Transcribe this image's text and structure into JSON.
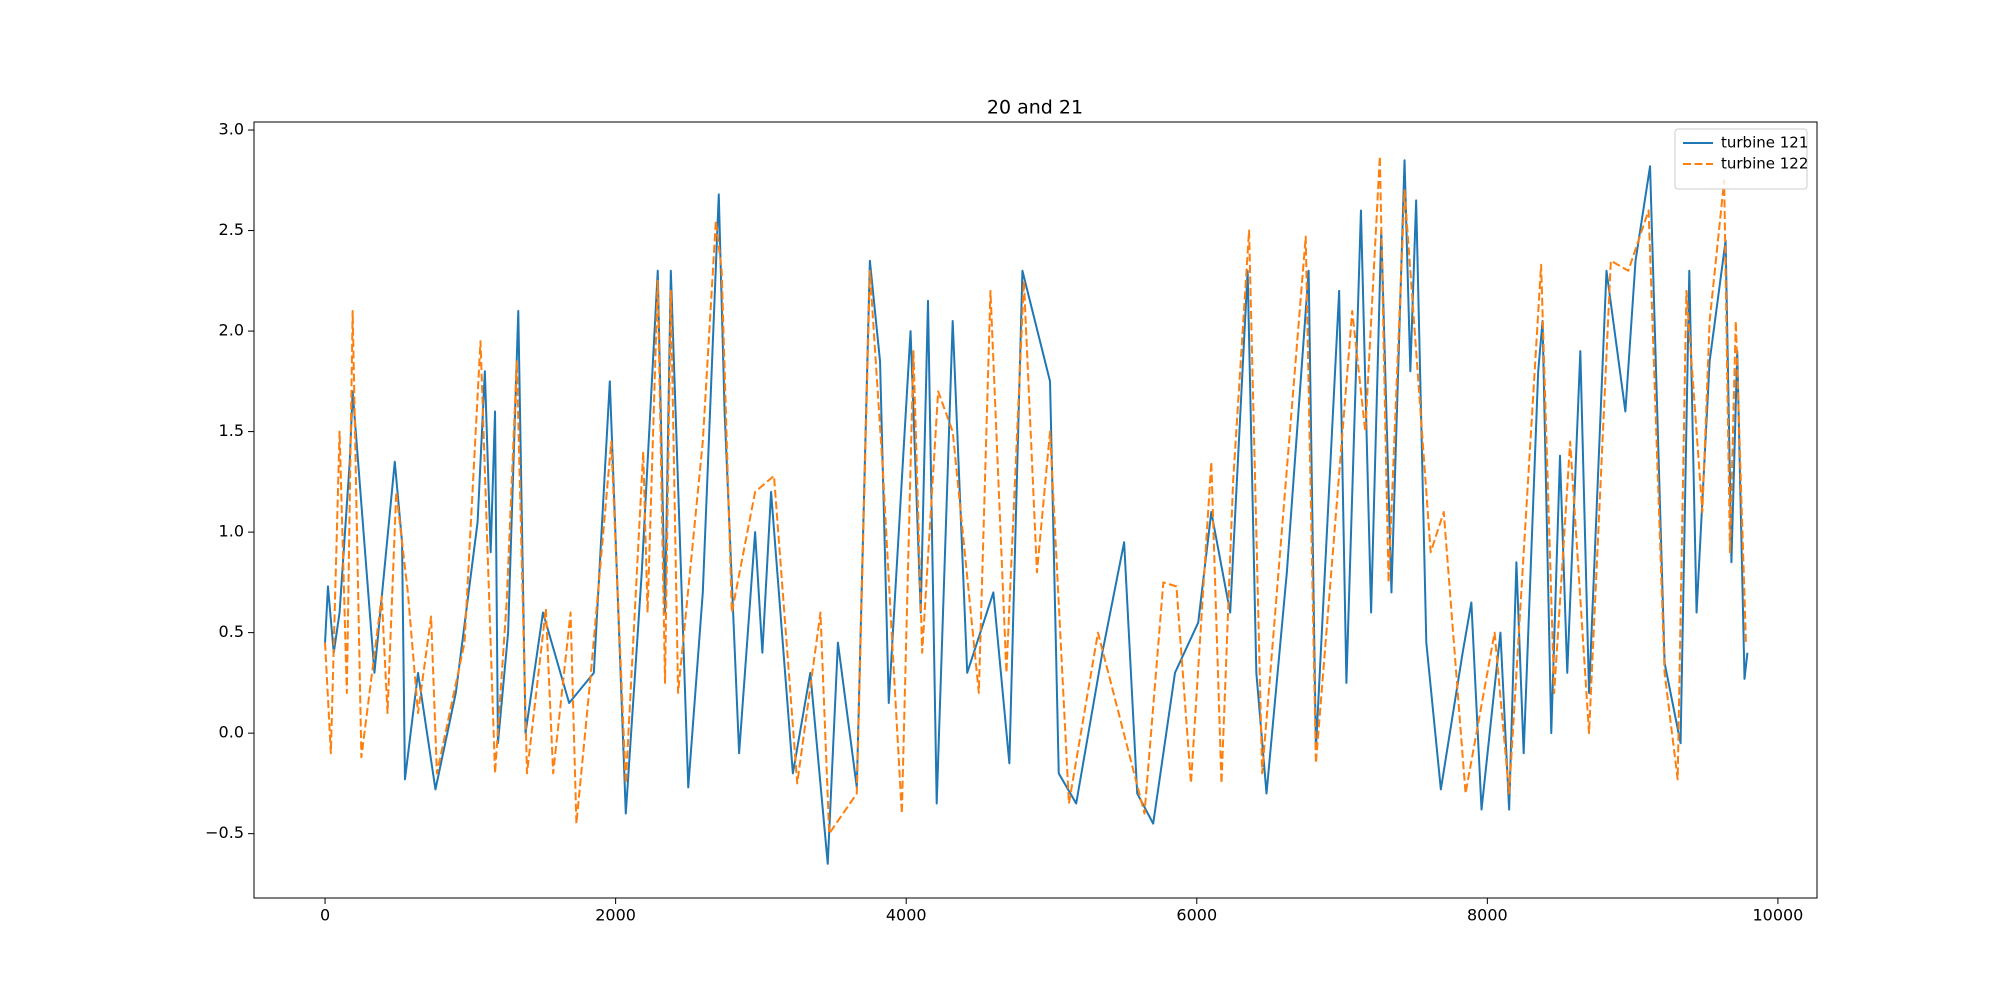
{
  "chart_data": {
    "type": "line",
    "title": "20 and 21",
    "xlim": [
      -489,
      10269
    ],
    "ylim": [
      -0.82,
      3.04
    ],
    "xticks": [
      0,
      2000,
      4000,
      6000,
      8000,
      10000
    ],
    "yticks": [
      {
        "value": -0.5,
        "label": "−0.5"
      },
      {
        "value": 0,
        "label": "0.0"
      },
      0.5,
      {
        "value": 1,
        "label": "1.0"
      },
      1.5,
      {
        "value": 2,
        "label": "2.0"
      },
      2.5,
      {
        "value": 3,
        "label": "3.0"
      }
    ],
    "legend": "upper right",
    "series": [
      {
        "name": "turbine 121",
        "color": "#1f77b4",
        "dash": "solid",
        "x": [
          0,
          20,
          60,
          100,
          170,
          190,
          340,
          480,
          530,
          550,
          640,
          760,
          900,
          1050,
          1100,
          1140,
          1170,
          1190,
          1260,
          1330,
          1380,
          1500,
          1680,
          1850,
          1960,
          2070,
          2180,
          2290,
          2340,
          2380,
          2500,
          2600,
          2710,
          2750,
          2850,
          2960,
          3010,
          3070,
          3220,
          3340,
          3460,
          3530,
          3660,
          3750,
          3820,
          3880,
          4030,
          4100,
          4150,
          4210,
          4320,
          4420,
          4600,
          4710,
          4800,
          4990,
          5050,
          5170,
          5350,
          5500,
          5590,
          5700,
          5850,
          6010,
          6100,
          6230,
          6350,
          6410,
          6480,
          6620,
          6770,
          6820,
          6980,
          7030,
          7130,
          7200,
          7270,
          7340,
          7430,
          7470,
          7510,
          7580,
          7680,
          7830,
          7890,
          7960,
          8090,
          8150,
          8200,
          8250,
          8350,
          8380,
          8440,
          8500,
          8550,
          8640,
          8700,
          8820,
          8950,
          9020,
          9120,
          9220,
          9330,
          9390,
          9440,
          9530,
          9640,
          9680,
          9720,
          9770,
          9790
        ],
        "values": [
          0.45,
          0.73,
          0.4,
          0.6,
          1.35,
          1.7,
          0.3,
          1.35,
          0.95,
          -0.23,
          0.3,
          -0.28,
          0.2,
          1.05,
          1.8,
          0.9,
          1.6,
          -0.05,
          0.5,
          2.1,
          0.0,
          0.6,
          0.15,
          0.3,
          1.75,
          -0.4,
          0.8,
          2.3,
          0.6,
          2.3,
          -0.27,
          0.7,
          2.68,
          1.6,
          -0.1,
          1.0,
          0.4,
          1.2,
          -0.2,
          0.3,
          -0.65,
          0.45,
          -0.27,
          2.35,
          1.85,
          0.15,
          2.0,
          0.6,
          2.15,
          -0.35,
          2.05,
          0.3,
          0.7,
          -0.15,
          2.3,
          1.75,
          -0.2,
          -0.35,
          0.4,
          0.95,
          -0.3,
          -0.45,
          0.3,
          0.55,
          1.1,
          0.6,
          2.3,
          0.3,
          -0.3,
          0.8,
          2.3,
          -0.08,
          2.2,
          0.25,
          2.6,
          0.6,
          2.5,
          0.7,
          2.85,
          1.8,
          2.65,
          0.45,
          -0.28,
          0.4,
          0.65,
          -0.38,
          0.5,
          -0.38,
          0.85,
          -0.1,
          1.8,
          2.05,
          0.0,
          1.38,
          0.3,
          1.9,
          0.2,
          2.3,
          1.6,
          2.35,
          2.82,
          0.35,
          -0.05,
          2.3,
          0.6,
          1.85,
          2.45,
          0.85,
          1.9,
          0.27,
          0.4
        ]
      },
      {
        "name": "turbine 122",
        "color": "#ff7f0e",
        "dash": "dashed",
        "x": [
          0,
          40,
          100,
          150,
          190,
          250,
          390,
          430,
          490,
          570,
          640,
          730,
          770,
          960,
          1070,
          1170,
          1250,
          1320,
          1390,
          1520,
          1570,
          1690,
          1730,
          1830,
          1970,
          2070,
          2190,
          2220,
          2290,
          2340,
          2380,
          2430,
          2600,
          2690,
          2730,
          2800,
          2960,
          3090,
          3250,
          3410,
          3470,
          3660,
          3750,
          3840,
          3900,
          3970,
          4050,
          4110,
          4220,
          4320,
          4500,
          4580,
          4690,
          4810,
          4900,
          4990,
          5120,
          5320,
          5640,
          5770,
          5860,
          5960,
          6100,
          6170,
          6250,
          6360,
          6450,
          6750,
          6820,
          7070,
          7160,
          7260,
          7320,
          7430,
          7610,
          7700,
          7850,
          8050,
          8150,
          8370,
          8460,
          8570,
          8700,
          8850,
          8970,
          9110,
          9220,
          9310,
          9370,
          9480,
          9530,
          9630,
          9670,
          9710,
          9780
        ],
        "values": [
          0.45,
          -0.1,
          1.5,
          0.2,
          2.1,
          -0.12,
          0.68,
          0.1,
          1.2,
          0.7,
          0.1,
          0.58,
          -0.2,
          0.45,
          1.95,
          -0.2,
          0.65,
          1.85,
          -0.2,
          0.62,
          -0.2,
          0.6,
          -0.45,
          0.3,
          1.45,
          -0.25,
          1.4,
          0.6,
          2.25,
          0.25,
          2.2,
          0.2,
          1.45,
          2.55,
          2.3,
          0.6,
          1.2,
          1.28,
          -0.25,
          0.6,
          -0.5,
          -0.3,
          2.3,
          1.3,
          0.5,
          -0.4,
          1.9,
          0.4,
          1.7,
          1.5,
          0.2,
          2.2,
          0.3,
          2.25,
          0.8,
          1.5,
          -0.35,
          0.5,
          -0.4,
          0.75,
          0.73,
          -0.25,
          1.35,
          -0.25,
          1.25,
          2.5,
          -0.2,
          2.47,
          -0.15,
          2.1,
          1.5,
          2.87,
          0.75,
          2.7,
          0.9,
          1.1,
          -0.3,
          0.5,
          -0.3,
          2.33,
          0.2,
          1.45,
          0.0,
          2.35,
          2.3,
          2.6,
          0.3,
          -0.23,
          2.2,
          1.1,
          2.05,
          2.75,
          0.9,
          2.05,
          0.45
        ]
      }
    ]
  }
}
